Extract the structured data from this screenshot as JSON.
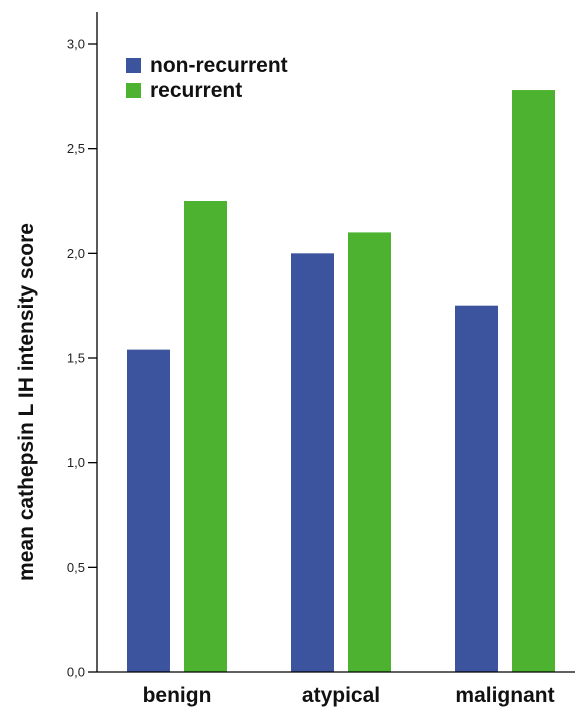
{
  "chart_data": {
    "type": "bar",
    "categories": [
      "benign",
      "atypical",
      "malignant"
    ],
    "series": [
      {
        "name": "non-recurrent",
        "values": [
          1.54,
          2.0,
          1.75
        ],
        "color": "#3c539e"
      },
      {
        "name": "recurrent",
        "values": [
          2.25,
          2.1,
          2.78
        ],
        "color": "#4cb230"
      }
    ],
    "title": "",
    "xlabel": "",
    "ylabel": "mean cathepsin L IH intensity score",
    "ylim": [
      0,
      3.0
    ],
    "yticks": [
      0.0,
      0.5,
      1.0,
      1.5,
      2.0,
      2.5,
      3.0
    ],
    "ytick_labels": [
      "0,0",
      "0,5",
      "1,0",
      "1,5",
      "2,0",
      "2,5",
      "3,0"
    ],
    "grid": false,
    "legend_position": "top-left"
  }
}
